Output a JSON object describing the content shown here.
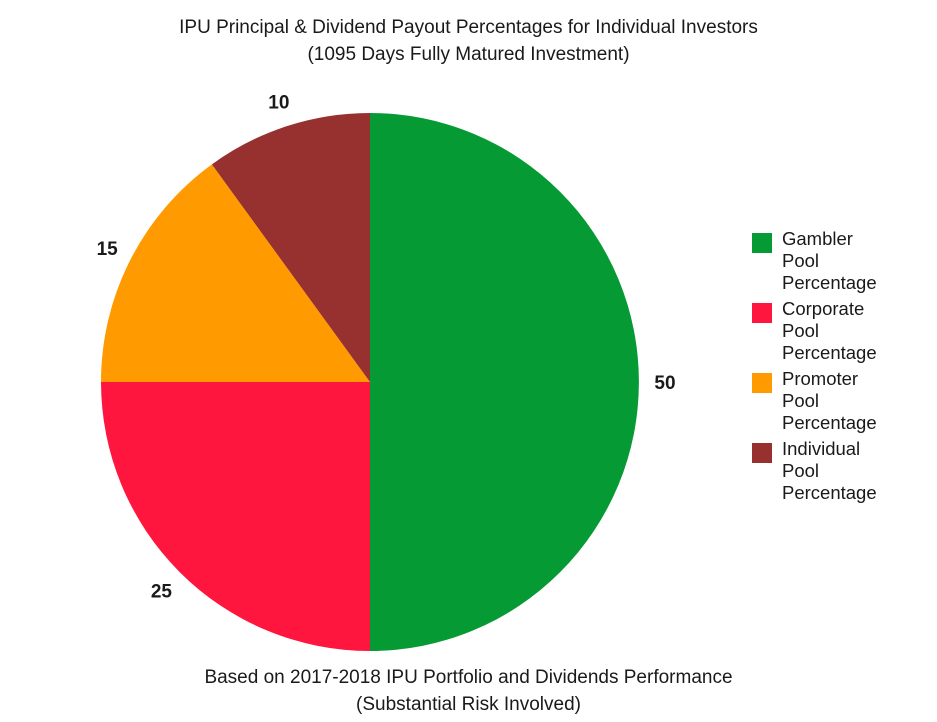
{
  "title": {
    "line1": "IPU Principal & Dividend Payout Percentages for Individual Investors",
    "line2": "(1095 Days Fully Matured Investment)"
  },
  "footnote": {
    "line1": "Based on 2017-2018 IPU Portfolio and Dividends Performance",
    "line2": "(Substantial Risk Involved)"
  },
  "chart_data": {
    "type": "pie",
    "title": "IPU Principal & Dividend Payout Percentages for Individual Investors (1095 Days Fully Matured Investment)",
    "start": "12 o'clock, clockwise",
    "legend_position": "right",
    "slices": [
      {
        "name": "Gambler Pool Percentage",
        "legend_text": "Gambler\nPool\nPercentage",
        "value": 50,
        "label": "50",
        "color": "#069a34"
      },
      {
        "name": "Corporate Pool Percentage",
        "legend_text": "Corporate\nPool\nPercentage",
        "value": 25,
        "label": "25",
        "color": "#ff163e"
      },
      {
        "name": "Promoter Pool Percentage",
        "legend_text": "Promoter\nPool\nPercentage",
        "value": 15,
        "label": "15",
        "color": "#ff9a00"
      },
      {
        "name": "Individual Pool Percentage",
        "legend_text": "Individual\nPool\nPercentage",
        "value": 10,
        "label": "10",
        "color": "#96312f"
      }
    ]
  }
}
